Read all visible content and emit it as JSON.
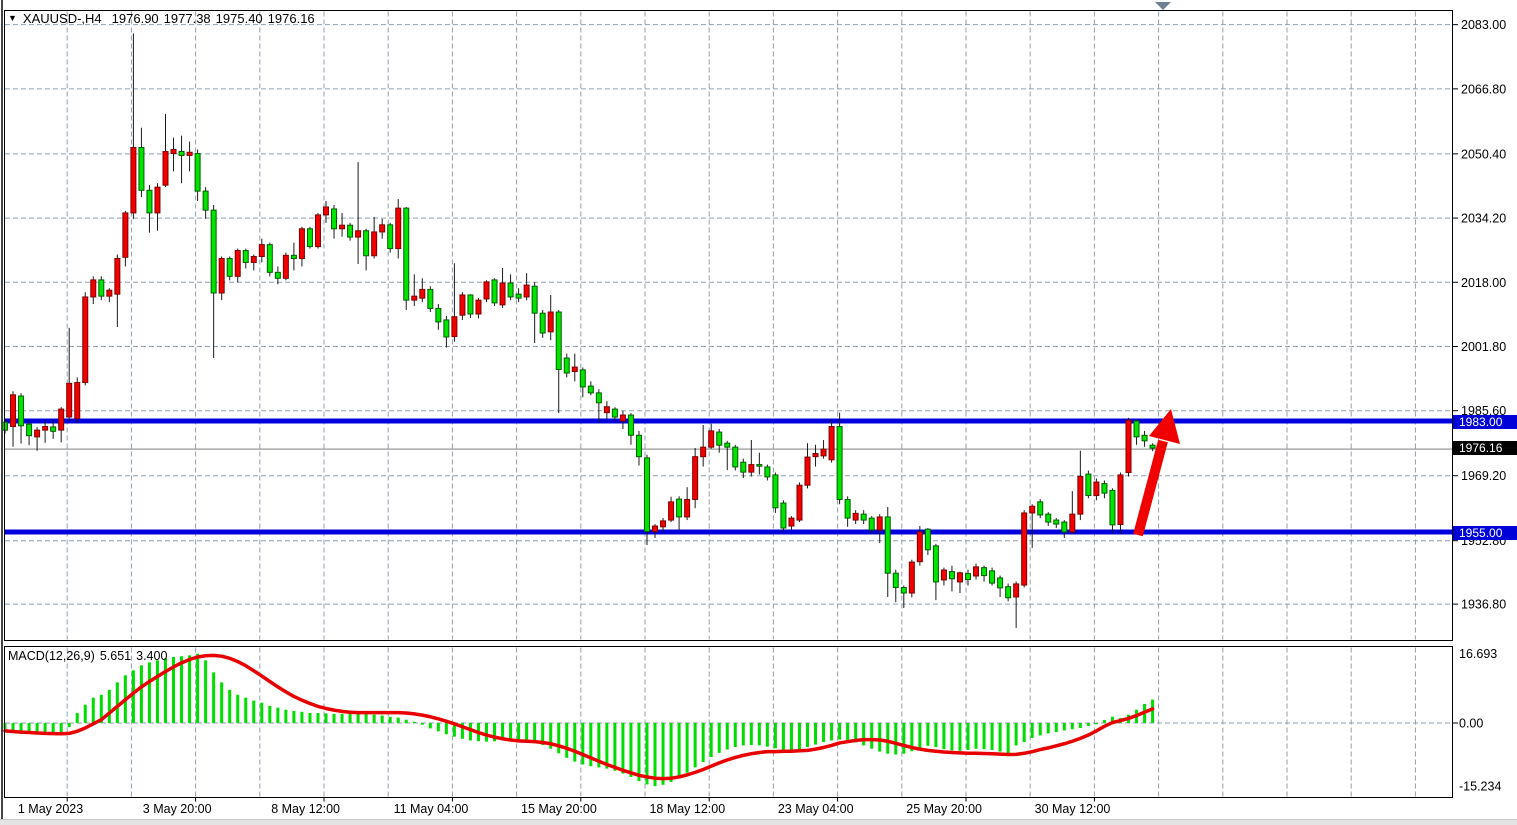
{
  "header": {
    "symbol_period": "XAUUSD-,H4",
    "open": "1976.90",
    "high": "1977.38",
    "low": "1975.40",
    "close": "1976.16",
    "dropdown_icon": "triangle-down"
  },
  "indicator": {
    "name": "MACD(12,26,9)",
    "macd_value": "5.651",
    "signal_value": "3.400"
  },
  "levels": {
    "resistance": 1983.0,
    "resistance_label": "1983.00",
    "support": 1955.0,
    "support_label": "1955.00",
    "last_price": 1976.16,
    "last_label": "1976.16"
  },
  "colors": {
    "bull": "#f20000",
    "bull_border": "#7e0000",
    "bear": "#00e400",
    "bear_border": "#005e00",
    "wick": "#1a1a1a",
    "grid": "#8fa0b0",
    "level_blue": "#0000dd",
    "price_line": "#9a9a9a",
    "signal": "#e80000",
    "hist": "#00dd00",
    "badge_blue": "#0000d9",
    "badge_black": "#000000",
    "arrow": "#f00000",
    "marker": "#6e8094",
    "border": "#000000",
    "axis_text": "#000000"
  },
  "axes": {
    "price_labels": [
      {
        "text": "2083.00",
        "price": 2083.0
      },
      {
        "text": "2066.80",
        "price": 2066.8
      },
      {
        "text": "2050.40",
        "price": 2050.4
      },
      {
        "text": "2034.20",
        "price": 2034.2
      },
      {
        "text": "2018.00",
        "price": 2018.0
      },
      {
        "text": "2001.80",
        "price": 2001.8
      },
      {
        "text": "1985.60",
        "price": 1985.6
      },
      {
        "text": "1969.20",
        "price": 1969.2
      },
      {
        "text": "1952.80",
        "price": 1952.8
      },
      {
        "text": "1936.80",
        "price": 1936.8
      }
    ],
    "macd_labels": [
      {
        "text": "16.693",
        "value": 16.693,
        "tick": false
      },
      {
        "text": "0.00",
        "value": 0.0,
        "tick": true
      },
      {
        "text": "-15.234",
        "value": -15.234,
        "tick": false
      }
    ],
    "x_labels": [
      {
        "text": "1 May 2023",
        "slot": 0
      },
      {
        "text": "3 May 20:00",
        "slot": 1
      },
      {
        "text": "8 May 12:00",
        "slot": 2
      },
      {
        "text": "11 May 04:00",
        "slot": 3
      },
      {
        "text": "15 May 20:00",
        "slot": 4
      },
      {
        "text": "18 May 12:00",
        "slot": 5
      },
      {
        "text": "23 May 04:00",
        "slot": 6
      },
      {
        "text": "25 May 20:00",
        "slot": 7
      },
      {
        "text": "30 May 12:00",
        "slot": 8
      }
    ]
  },
  "chart_data": {
    "type": "candlestick",
    "title": "XAUUSD- H4 with MACD(12,26,9)",
    "ylim_main": [
      1930,
      2085
    ],
    "ylim_macd": [
      -15.234,
      16.693
    ],
    "grid": true,
    "legend_position": "none",
    "ohlc": [
      [
        1982.7,
        1983.5,
        1979.8,
        1980.7
      ],
      [
        1981.6,
        1990.5,
        1976.5,
        1989.6
      ],
      [
        1989.3,
        1990.0,
        1977.3,
        1981.8
      ],
      [
        1982.2,
        1983.0,
        1976.9,
        1979.3
      ],
      [
        1979.0,
        1981.5,
        1975.5,
        1980.7
      ],
      [
        1980.7,
        1983.0,
        1977.5,
        1981.6
      ],
      [
        1981.5,
        1983.0,
        1978.5,
        1980.4
      ],
      [
        1980.7,
        1986.5,
        1977.6,
        1986.0
      ],
      [
        1984.0,
        2006.5,
        1983.0,
        1992.5
      ],
      [
        1983.6,
        1994.0,
        1982.5,
        1992.7
      ],
      [
        1992.7,
        2015.5,
        1992.0,
        2014.3
      ],
      [
        2014.3,
        2019.5,
        2012.5,
        2018.6
      ],
      [
        2018.6,
        2019.5,
        2013.5,
        2014.5
      ],
      [
        2014.5,
        2016.5,
        2013.0,
        2016.0
      ],
      [
        2015.0,
        2025.0,
        2006.7,
        2024.0
      ],
      [
        2024.3,
        2036.0,
        2022.0,
        2035.5
      ],
      [
        2035.5,
        2080.8,
        2034.0,
        2052.0
      ],
      [
        2052.0,
        2057.0,
        2039.5,
        2041.2
      ],
      [
        2041.2,
        2042.5,
        2030.5,
        2035.5
      ],
      [
        2035.5,
        2043.0,
        2031.0,
        2042.0
      ],
      [
        2042.5,
        2060.5,
        2042.0,
        2051.0
      ],
      [
        2050.5,
        2054.5,
        2046.0,
        2051.5
      ],
      [
        2051.0,
        2055.0,
        2043.0,
        2050.0
      ],
      [
        2050.0,
        2053.5,
        2046.0,
        2050.8
      ],
      [
        2050.5,
        2051.5,
        2038.5,
        2041.0
      ],
      [
        2041.0,
        2042.0,
        2034.0,
        2036.2
      ],
      [
        2036.2,
        2037.5,
        1998.9,
        2015.3
      ],
      [
        2015.3,
        2024.5,
        2013.5,
        2024.0
      ],
      [
        2024.0,
        2024.5,
        2018.5,
        2019.5
      ],
      [
        2019.5,
        2026.5,
        2018.0,
        2026.0
      ],
      [
        2026.0,
        2026.5,
        2021.5,
        2023.0
      ],
      [
        2023.0,
        2025.0,
        2021.0,
        2024.5
      ],
      [
        2024.5,
        2029.0,
        2023.0,
        2027.5
      ],
      [
        2027.5,
        2028.0,
        2019.5,
        2020.5
      ],
      [
        2020.5,
        2022.0,
        2017.5,
        2019.0
      ],
      [
        2019.0,
        2025.5,
        2018.5,
        2024.8
      ],
      [
        2024.8,
        2028.0,
        2021.0,
        2024.0
      ],
      [
        2024.0,
        2032.0,
        2022.0,
        2031.5
      ],
      [
        2031.5,
        2032.0,
        2026.5,
        2027.0
      ],
      [
        2027.0,
        2035.5,
        2026.5,
        2035.0
      ],
      [
        2035.0,
        2038.5,
        2033.0,
        2037.0
      ],
      [
        2036.5,
        2037.5,
        2029.0,
        2031.5
      ],
      [
        2031.5,
        2035.5,
        2029.5,
        2032.4
      ],
      [
        2032.4,
        2033.0,
        2028.5,
        2029.4
      ],
      [
        2029.4,
        2048.3,
        2022.6,
        2031.0
      ],
      [
        2031.0,
        2031.5,
        2021.0,
        2024.7
      ],
      [
        2024.7,
        2034.5,
        2024.0,
        2030.7
      ],
      [
        2030.7,
        2034.0,
        2029.0,
        2032.5
      ],
      [
        2032.5,
        2033.0,
        2025.5,
        2026.5
      ],
      [
        2026.5,
        2039.0,
        2024.0,
        2036.7
      ],
      [
        2036.7,
        2037.0,
        2011.0,
        2013.5
      ],
      [
        2013.5,
        2020.0,
        2012.0,
        2014.5
      ],
      [
        2014.0,
        2019.0,
        2013.0,
        2016.2
      ],
      [
        2016.2,
        2017.0,
        2010.5,
        2011.4
      ],
      [
        2011.4,
        2012.5,
        2006.0,
        2008.0
      ],
      [
        2008.5,
        2009.5,
        2001.5,
        2004.2
      ],
      [
        2004.3,
        2022.8,
        2003.0,
        2009.3
      ],
      [
        2009.7,
        2015.5,
        2008.5,
        2014.8
      ],
      [
        2014.8,
        2015.0,
        2009.0,
        2010.0
      ],
      [
        2010.0,
        2014.0,
        2008.9,
        2013.5
      ],
      [
        2013.8,
        2018.5,
        2013.0,
        2018.1
      ],
      [
        2018.6,
        2019.0,
        2012.0,
        2012.8
      ],
      [
        2012.3,
        2021.6,
        2011.5,
        2017.8
      ],
      [
        2017.8,
        2020.0,
        2013.5,
        2014.3
      ],
      [
        2015.0,
        2016.5,
        2013.0,
        2014.0
      ],
      [
        2014.3,
        2020.3,
        2013.5,
        2017.3
      ],
      [
        2017.0,
        2018.0,
        2002.7,
        2010.2
      ],
      [
        2010.2,
        2011.0,
        2004.0,
        2005.2
      ],
      [
        2005.5,
        2014.8,
        2003.4,
        2010.5
      ],
      [
        2010.5,
        2011.0,
        1985.0,
        1996.0
      ],
      [
        1998.9,
        2000.0,
        1994.0,
        1995.1
      ],
      [
        1995.5,
        2000.0,
        1993.0,
        1996.6
      ],
      [
        1995.9,
        1996.5,
        1989.0,
        1991.6
      ],
      [
        1991.8,
        1993.0,
        1989.5,
        1990.1
      ],
      [
        1990.1,
        1991.0,
        1982.7,
        1987.6
      ],
      [
        1985.1,
        1988.0,
        1983.5,
        1986.6
      ],
      [
        1986.0,
        1986.5,
        1983.0,
        1984.0
      ],
      [
        1983.0,
        1985.5,
        1981.0,
        1984.5
      ],
      [
        1984.5,
        1985.0,
        1977.0,
        1979.4
      ],
      [
        1979.4,
        1980.5,
        1971.8,
        1974.0
      ],
      [
        1973.7,
        1974.5,
        1951.7,
        1955.1
      ],
      [
        1955.1,
        1957.0,
        1953.5,
        1956.5
      ],
      [
        1956.3,
        1958.5,
        1955.0,
        1957.8
      ],
      [
        1958.0,
        1963.9,
        1957.5,
        1962.6
      ],
      [
        1963.3,
        1964.0,
        1955.5,
        1958.8
      ],
      [
        1958.8,
        1966.3,
        1958.0,
        1963.2
      ],
      [
        1963.2,
        1976.2,
        1961.0,
        1974.0
      ],
      [
        1974.0,
        1982.0,
        1971.5,
        1976.4
      ],
      [
        1976.4,
        1982.3,
        1976.0,
        1980.5
      ],
      [
        1980.2,
        1981.0,
        1975.0,
        1976.9
      ],
      [
        1977.4,
        1978.0,
        1970.6,
        1976.4
      ],
      [
        1976.4,
        1977.0,
        1970.5,
        1971.4
      ],
      [
        1972.6,
        1973.5,
        1968.6,
        1970.1
      ],
      [
        1970.1,
        1978.2,
        1969.0,
        1972.0
      ],
      [
        1972.0,
        1975.0,
        1969.5,
        1971.6
      ],
      [
        1971.4,
        1972.0,
        1968.0,
        1968.9
      ],
      [
        1969.4,
        1970.0,
        1959.8,
        1961.1
      ],
      [
        1962.3,
        1963.0,
        1955.1,
        1956.0
      ],
      [
        1956.5,
        1959.0,
        1955.5,
        1958.5
      ],
      [
        1958.0,
        1967.5,
        1957.5,
        1966.8
      ],
      [
        1966.8,
        1977.4,
        1966.0,
        1973.9
      ],
      [
        1974.0,
        1977.0,
        1971.5,
        1974.8
      ],
      [
        1974.2,
        1978.2,
        1973.5,
        1975.9
      ],
      [
        1973.2,
        1983.3,
        1972.5,
        1981.6
      ],
      [
        1981.6,
        1985.1,
        1962.0,
        1963.2
      ],
      [
        1963.2,
        1964.0,
        1956.3,
        1958.5
      ],
      [
        1958.0,
        1960.5,
        1957.0,
        1959.7
      ],
      [
        1959.5,
        1960.5,
        1957.0,
        1958.0
      ],
      [
        1958.5,
        1959.0,
        1954.5,
        1955.5
      ],
      [
        1955.5,
        1959.5,
        1952.2,
        1958.8
      ],
      [
        1958.8,
        1961.3,
        1938.6,
        1944.6
      ],
      [
        1944.6,
        1945.5,
        1937.3,
        1941.0
      ],
      [
        1941.0,
        1941.5,
        1935.8,
        1939.6
      ],
      [
        1939.6,
        1948.0,
        1938.5,
        1947.4
      ],
      [
        1947.5,
        1956.5,
        1946.5,
        1955.0
      ],
      [
        1955.7,
        1956.0,
        1949.2,
        1950.5
      ],
      [
        1951.5,
        1952.0,
        1937.8,
        1942.4
      ],
      [
        1942.9,
        1946.0,
        1941.5,
        1945.4
      ],
      [
        1945.0,
        1946.5,
        1940.0,
        1943.2
      ],
      [
        1942.4,
        1945.0,
        1939.6,
        1944.7
      ],
      [
        1944.5,
        1945.5,
        1941.5,
        1943.0
      ],
      [
        1943.9,
        1947.0,
        1943.0,
        1946.2
      ],
      [
        1946.0,
        1946.5,
        1942.5,
        1944.0
      ],
      [
        1945.2,
        1946.0,
        1941.5,
        1942.1
      ],
      [
        1943.4,
        1944.0,
        1938.6,
        1940.9
      ],
      [
        1941.2,
        1942.0,
        1937.5,
        1938.4
      ],
      [
        1938.6,
        1942.5,
        1930.8,
        1941.9
      ],
      [
        1941.6,
        1960.5,
        1941.0,
        1959.8
      ],
      [
        1959.8,
        1962.0,
        1951.0,
        1961.5
      ],
      [
        1962.6,
        1963.3,
        1958.5,
        1959.3
      ],
      [
        1959.5,
        1960.0,
        1956.5,
        1957.5
      ],
      [
        1958.0,
        1958.5,
        1956.0,
        1957.0
      ],
      [
        1957.5,
        1958.0,
        1953.5,
        1955.0
      ],
      [
        1955.0,
        1965.3,
        1954.5,
        1959.5
      ],
      [
        1959.5,
        1975.5,
        1958.0,
        1969.0
      ],
      [
        1969.6,
        1970.5,
        1963.5,
        1964.2
      ],
      [
        1964.2,
        1968.5,
        1963.0,
        1967.6
      ],
      [
        1967.2,
        1968.0,
        1963.5,
        1964.8
      ],
      [
        1965.5,
        1966.0,
        1954.8,
        1956.8
      ],
      [
        1956.9,
        1970.0,
        1954.5,
        1969.4
      ],
      [
        1970.0,
        1983.8,
        1969.0,
        1983.2
      ],
      [
        1983.0,
        1983.5,
        1977.0,
        1979.0
      ],
      [
        1979.4,
        1980.5,
        1976.5,
        1978.0
      ],
      [
        1976.9,
        1977.38,
        1975.4,
        1976.16
      ]
    ],
    "macd_hist": [
      -1.5,
      -1.8,
      -2.0,
      -2.2,
      -2.4,
      -2.5,
      -2.6,
      -2.6,
      -1.0,
      2.4,
      4.4,
      6.1,
      6.8,
      8.0,
      9.8,
      11.5,
      12.7,
      13.9,
      14.6,
      15.1,
      15.6,
      15.9,
      16.1,
      16.3,
      16.69,
      15.1,
      12.2,
      9.8,
      8.0,
      6.8,
      6.1,
      5.4,
      4.9,
      4.1,
      3.7,
      3.2,
      2.9,
      2.7,
      2.4,
      2.4,
      2.3,
      2.2,
      2.2,
      2.3,
      2.4,
      2.2,
      2.0,
      1.8,
      1.5,
      1.3,
      0.8,
      0.3,
      -0.4,
      -1.3,
      -2.0,
      -2.7,
      -3.3,
      -3.8,
      -4.2,
      -4.4,
      -4.5,
      -4.4,
      -4.2,
      -4.0,
      -4.0,
      -4.2,
      -4.6,
      -5.3,
      -6.2,
      -7.3,
      -8.4,
      -9.3,
      -10.0,
      -10.4,
      -10.7,
      -11.0,
      -11.5,
      -12.2,
      -13.0,
      -14.0,
      -14.8,
      -15.23,
      -14.9,
      -14.2,
      -13.2,
      -12.0,
      -10.7,
      -9.4,
      -8.2,
      -7.2,
      -6.4,
      -5.8,
      -5.4,
      -5.3,
      -5.4,
      -5.7,
      -6.1,
      -6.4,
      -6.5,
      -6.3,
      -5.8,
      -5.2,
      -4.6,
      -4.2,
      -4.0,
      -4.2,
      -4.7,
      -5.4,
      -6.2,
      -6.9,
      -7.4,
      -7.6,
      -7.4,
      -6.8,
      -6.0,
      -5.5,
      -5.8,
      -6.3,
      -6.6,
      -6.7,
      -6.5,
      -6.2,
      -6.3,
      -6.5,
      -6.9,
      -7.3,
      -5.4,
      -4.6,
      -3.6,
      -3.0,
      -2.5,
      -2.2,
      -1.8,
      -1.5,
      -1.2,
      -0.7,
      -0.3,
      0.7,
      1.5,
      1.2,
      2.0,
      3.2,
      4.6,
      5.651
    ],
    "macd_signal": [
      -1.9,
      -2.05,
      -2.2,
      -2.3,
      -2.4,
      -2.5,
      -2.55,
      -2.6,
      -2.5,
      -2.0,
      -1.2,
      -0.2,
      0.8,
      2.4,
      4.0,
      5.6,
      7.2,
      8.7,
      10.0,
      11.2,
      12.4,
      13.5,
      14.5,
      15.3,
      15.9,
      16.2,
      16.3,
      16.1,
      15.6,
      14.8,
      13.8,
      12.6,
      11.3,
      10.0,
      8.7,
      7.5,
      6.4,
      5.5,
      4.7,
      4.0,
      3.5,
      3.1,
      2.8,
      2.6,
      2.5,
      2.5,
      2.5,
      2.5,
      2.5,
      2.5,
      2.4,
      2.2,
      1.9,
      1.5,
      1.0,
      0.4,
      -0.2,
      -0.9,
      -1.6,
      -2.3,
      -2.9,
      -3.4,
      -3.8,
      -4.1,
      -4.3,
      -4.4,
      -4.5,
      -4.7,
      -5.0,
      -5.5,
      -6.1,
      -6.8,
      -7.6,
      -8.4,
      -9.2,
      -10.0,
      -10.7,
      -11.4,
      -12.0,
      -12.6,
      -13.0,
      -13.3,
      -13.4,
      -13.3,
      -13.0,
      -12.5,
      -11.9,
      -11.2,
      -10.4,
      -9.6,
      -8.9,
      -8.3,
      -7.8,
      -7.4,
      -7.1,
      -6.9,
      -6.9,
      -6.8,
      -6.8,
      -6.7,
      -6.6,
      -6.3,
      -5.9,
      -5.4,
      -4.8,
      -4.5,
      -4.2,
      -4.0,
      -4.0,
      -4.1,
      -4.4,
      -4.9,
      -5.4,
      -5.9,
      -6.3,
      -6.6,
      -6.8,
      -7.0,
      -7.1,
      -7.2,
      -7.3,
      -7.3,
      -7.35,
      -7.4,
      -7.5,
      -7.6,
      -7.55,
      -7.3,
      -6.9,
      -6.4,
      -6.0,
      -5.5,
      -5.0,
      -4.4,
      -3.7,
      -2.9,
      -1.9,
      -0.8,
      0.1,
      0.6,
      1.1,
      1.8,
      2.6,
      3.4
    ],
    "annotations": [
      {
        "name": "resistance-line",
        "price": 1983.0
      },
      {
        "name": "support-line",
        "price": 1955.0
      },
      {
        "name": "bid-line",
        "price": 1976.16
      },
      {
        "name": "trend-arrow",
        "from_price": 1955.0,
        "to_price": 1984.0,
        "direction": "up"
      }
    ]
  }
}
